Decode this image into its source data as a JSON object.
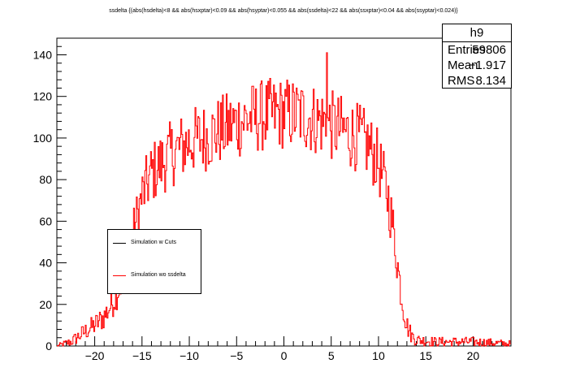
{
  "title": "ssdelta {(abs(hsdelta)<8 && abs(hsxptar)<0.09 && abs(hsyptar)<0.055 && abs(ssdelta)<22 && abs(ssxptar)<0.04 && abs(ssyptar)<0.024)}",
  "stats": {
    "name": "h9",
    "rows": [
      {
        "key": "Entries",
        "value": "59806"
      },
      {
        "key": "Mean",
        "value": "−1.917"
      },
      {
        "key": "RMS",
        "value": "8.134"
      }
    ]
  },
  "legend": [
    {
      "label": "Simulation w Cuts",
      "color": "#000000"
    },
    {
      "label": "Simulation wo ssdelta",
      "color": "#ff0000"
    }
  ],
  "chart_data": {
    "type": "histogram",
    "color": "#ff0000",
    "xlim": [
      -24,
      24
    ],
    "ylim": [
      0,
      148
    ],
    "xticks": [
      -20,
      -15,
      -10,
      -5,
      0,
      5,
      10,
      15,
      20
    ],
    "yticks": [
      0,
      20,
      40,
      60,
      80,
      100,
      120,
      140
    ],
    "xlabel": "",
    "ylabel": "",
    "grid": false,
    "legend_position": "middle-left",
    "bin_width": 0.1,
    "envelope_approx": [
      {
        "x": -24.0,
        "y": 0
      },
      {
        "x": -22.5,
        "y": 2
      },
      {
        "x": -21.0,
        "y": 7
      },
      {
        "x": -20.0,
        "y": 10
      },
      {
        "x": -19.0,
        "y": 14
      },
      {
        "x": -18.0,
        "y": 22
      },
      {
        "x": -17.0,
        "y": 33
      },
      {
        "x": -16.0,
        "y": 52
      },
      {
        "x": -15.0,
        "y": 72
      },
      {
        "x": -14.0,
        "y": 83
      },
      {
        "x": -12.0,
        "y": 92
      },
      {
        "x": -10.0,
        "y": 98
      },
      {
        "x": -8.0,
        "y": 101
      },
      {
        "x": -6.0,
        "y": 105
      },
      {
        "x": -4.0,
        "y": 109
      },
      {
        "x": -2.0,
        "y": 111
      },
      {
        "x": 0.0,
        "y": 112
      },
      {
        "x": 2.0,
        "y": 111
      },
      {
        "x": 4.0,
        "y": 108
      },
      {
        "x": 6.0,
        "y": 104
      },
      {
        "x": 8.0,
        "y": 100
      },
      {
        "x": 9.0,
        "y": 96
      },
      {
        "x": 10.0,
        "y": 88
      },
      {
        "x": 11.0,
        "y": 72
      },
      {
        "x": 11.5,
        "y": 58
      },
      {
        "x": 12.0,
        "y": 40
      },
      {
        "x": 12.5,
        "y": 22
      },
      {
        "x": 13.0,
        "y": 10
      },
      {
        "x": 13.5,
        "y": 5
      },
      {
        "x": 14.0,
        "y": 3
      },
      {
        "x": 16.0,
        "y": 2
      },
      {
        "x": 20.0,
        "y": 2
      },
      {
        "x": 24.0,
        "y": 1
      }
    ],
    "noise_amplitude": 11,
    "peak": {
      "x": 4.6,
      "y": 141
    },
    "entries": 59806,
    "mean": -1.917,
    "rms": 8.134
  }
}
